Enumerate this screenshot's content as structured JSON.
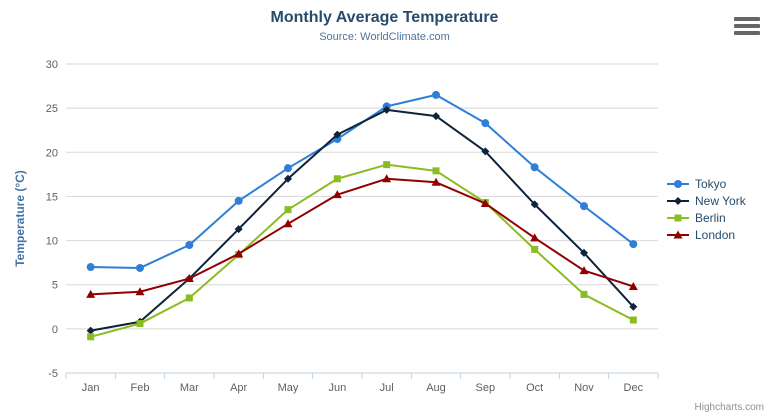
{
  "icons": {
    "context_menu": "hamburger-icon"
  },
  "credits": "Highcharts.com",
  "chart_data": {
    "type": "line",
    "title": "Monthly Average Temperature",
    "subtitle": "Source: WorldClimate.com",
    "categories": [
      "Jan",
      "Feb",
      "Mar",
      "Apr",
      "May",
      "Jun",
      "Jul",
      "Aug",
      "Sep",
      "Oct",
      "Nov",
      "Dec"
    ],
    "xlabel": "",
    "ylabel": "Temperature (°C)",
    "ylim": [
      -5,
      30
    ],
    "yticks": [
      -5,
      0,
      5,
      10,
      15,
      20,
      25,
      30
    ],
    "grid": true,
    "legend_position": "right",
    "grid_color": "#D8D8D8",
    "axis_line_color": "#C0D0E0",
    "series": [
      {
        "name": "Tokyo",
        "color": "#2f7ed8",
        "marker": "circle",
        "values": [
          7.0,
          6.9,
          9.5,
          14.5,
          18.2,
          21.5,
          25.2,
          26.5,
          23.3,
          18.3,
          13.9,
          9.6
        ]
      },
      {
        "name": "New York",
        "color": "#0d233a",
        "marker": "diamond",
        "values": [
          -0.2,
          0.8,
          5.7,
          11.3,
          17.0,
          22.0,
          24.8,
          24.1,
          20.1,
          14.1,
          8.6,
          2.5
        ]
      },
      {
        "name": "Berlin",
        "color": "#8bbc21",
        "marker": "square",
        "values": [
          -0.9,
          0.6,
          3.5,
          8.4,
          13.5,
          17.0,
          18.6,
          17.9,
          14.3,
          9.0,
          3.9,
          1.0
        ]
      },
      {
        "name": "London",
        "color": "#910000",
        "marker": "triangle",
        "values": [
          3.9,
          4.2,
          5.7,
          8.5,
          11.9,
          15.2,
          17.0,
          16.6,
          14.2,
          10.3,
          6.6,
          4.8
        ]
      }
    ]
  }
}
